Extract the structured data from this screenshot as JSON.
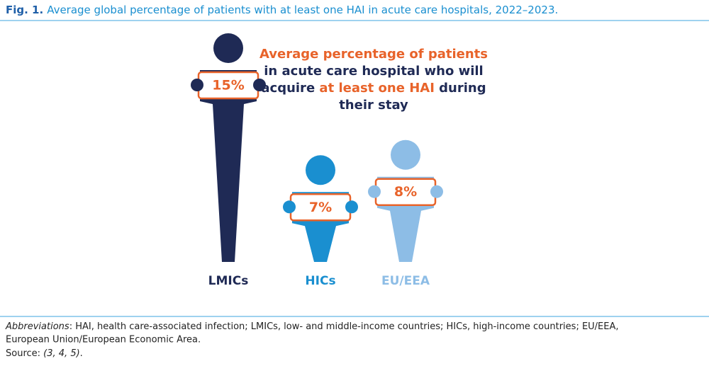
{
  "figure_label": "Fig. 1.",
  "chart_data": {
    "type": "pictogram",
    "title": "Average global percentage of patients with at least one HAI in acute care hospitals, 2022–2023.",
    "annotation": [
      [
        {
          "text": "Average percentage of patients",
          "color": "#e8632a"
        }
      ],
      [
        {
          "text": "in acute care hospital who will",
          "color": "#1f2a55"
        }
      ],
      [
        {
          "text": "acquire ",
          "color": "#1f2a55"
        },
        {
          "text": "at least one HAI",
          "color": "#e8632a"
        },
        {
          "text": " during",
          "color": "#1f2a55"
        }
      ],
      [
        {
          "text": "their stay",
          "color": "#1f2a55"
        }
      ]
    ],
    "categories": [
      "LMICs",
      "HICs",
      "EU/EEA"
    ],
    "values": [
      15,
      7,
      8
    ],
    "value_labels": [
      "15%",
      "7%",
      "8%"
    ],
    "colors": [
      "#1f2a55",
      "#1a8fd0",
      "#8dbde6"
    ],
    "label_color": "#e8632a"
  },
  "notes": {
    "abbreviations_label": "Abbreviations",
    "abbreviations": ": HAI, health care-associated infection; LMICs, low- and middle-income countries; HICs, high-income countries; EU/EEA,",
    "abbreviations_2": "European Union/European Economic Area.",
    "source_label": "Source: ",
    "source_refs": "(3, 4, 5)",
    "source_end": "."
  }
}
